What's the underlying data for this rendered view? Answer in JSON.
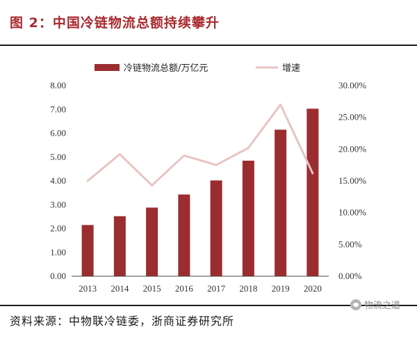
{
  "figure_title": "图 2：中国冷链物流总额持续攀升",
  "source_note": "资料来源：中物联冷链委，浙商证券研究所",
  "watermark": "物流之道",
  "colors": {
    "bar": "#9b2d30",
    "line": "#e8c4c2",
    "title": "#a72a2f"
  },
  "chart_data": {
    "type": "bar",
    "categories": [
      "2013",
      "2014",
      "2015",
      "2016",
      "2017",
      "2018",
      "2019",
      "2020"
    ],
    "series": [
      {
        "name": "冷链物流总额/万亿元",
        "type": "bar",
        "axis": "left",
        "values": [
          2.15,
          2.52,
          2.88,
          3.43,
          4.02,
          4.85,
          6.15,
          7.03
        ]
      },
      {
        "name": "增速",
        "type": "line",
        "axis": "right",
        "values": [
          0.15,
          0.192,
          0.143,
          0.19,
          0.175,
          0.202,
          0.27,
          0.162
        ]
      }
    ],
    "left_axis": {
      "ylim": [
        0,
        8
      ],
      "ticks": [
        "0.00",
        "1.00",
        "2.00",
        "3.00",
        "4.00",
        "5.00",
        "6.00",
        "7.00",
        "8.00"
      ]
    },
    "right_axis": {
      "ylim": [
        0,
        0.3
      ],
      "ticks": [
        "0.00%",
        "5.00%",
        "10.00%",
        "15.00%",
        "20.00%",
        "25.00%",
        "30.00%"
      ]
    },
    "legend_position": "top-center",
    "grid": false
  }
}
